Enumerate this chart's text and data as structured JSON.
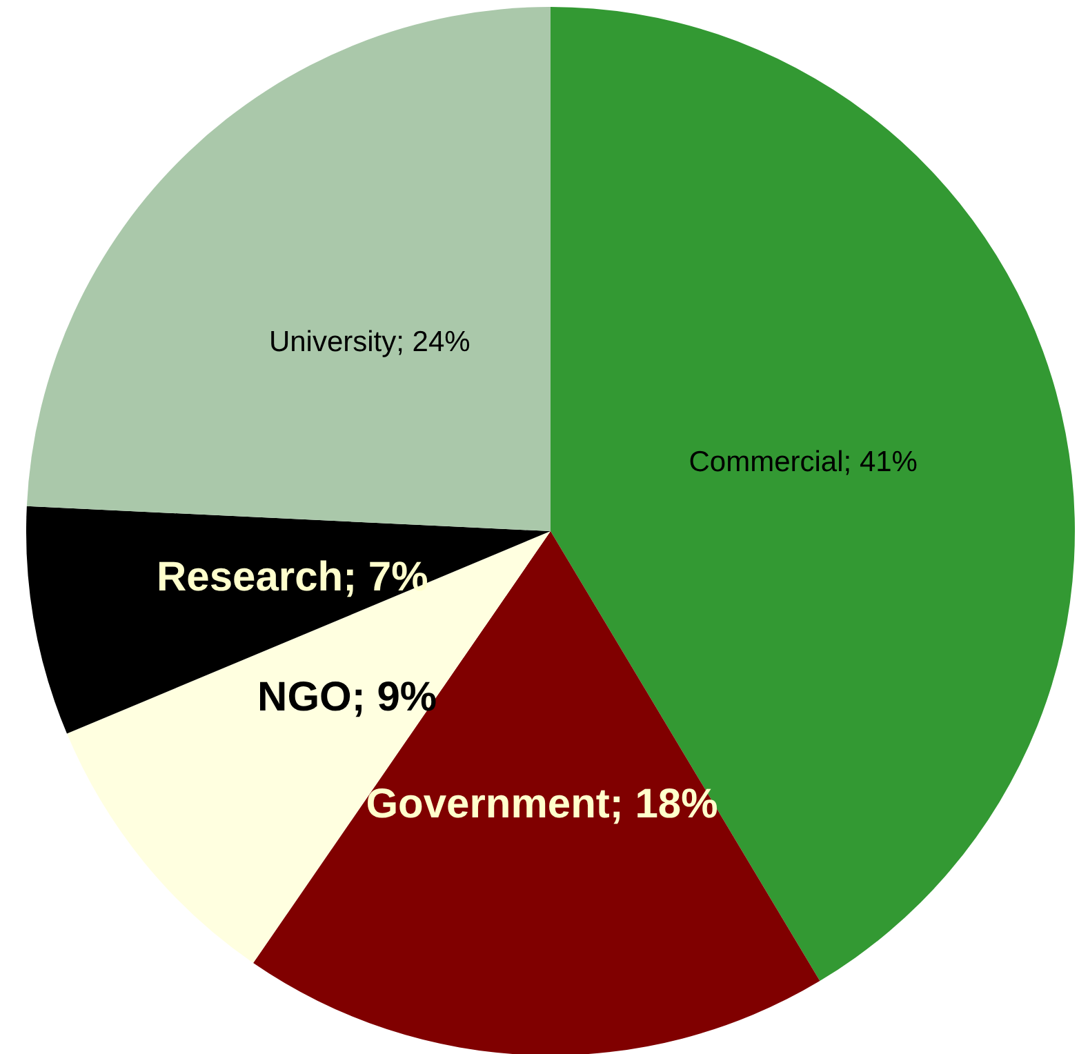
{
  "chart_data": {
    "type": "pie",
    "categories": [
      "Commercial",
      "Government",
      "NGO",
      "Research",
      "University"
    ],
    "values": [
      41,
      18,
      9,
      7,
      24
    ],
    "value_labels": [
      "; 41%",
      "; 18%",
      "; 9%",
      "; 7%",
      "; 24%"
    ],
    "colors": [
      "#339933",
      "#800000",
      "#ffffe0",
      "#000000",
      "#aac8aa"
    ]
  }
}
